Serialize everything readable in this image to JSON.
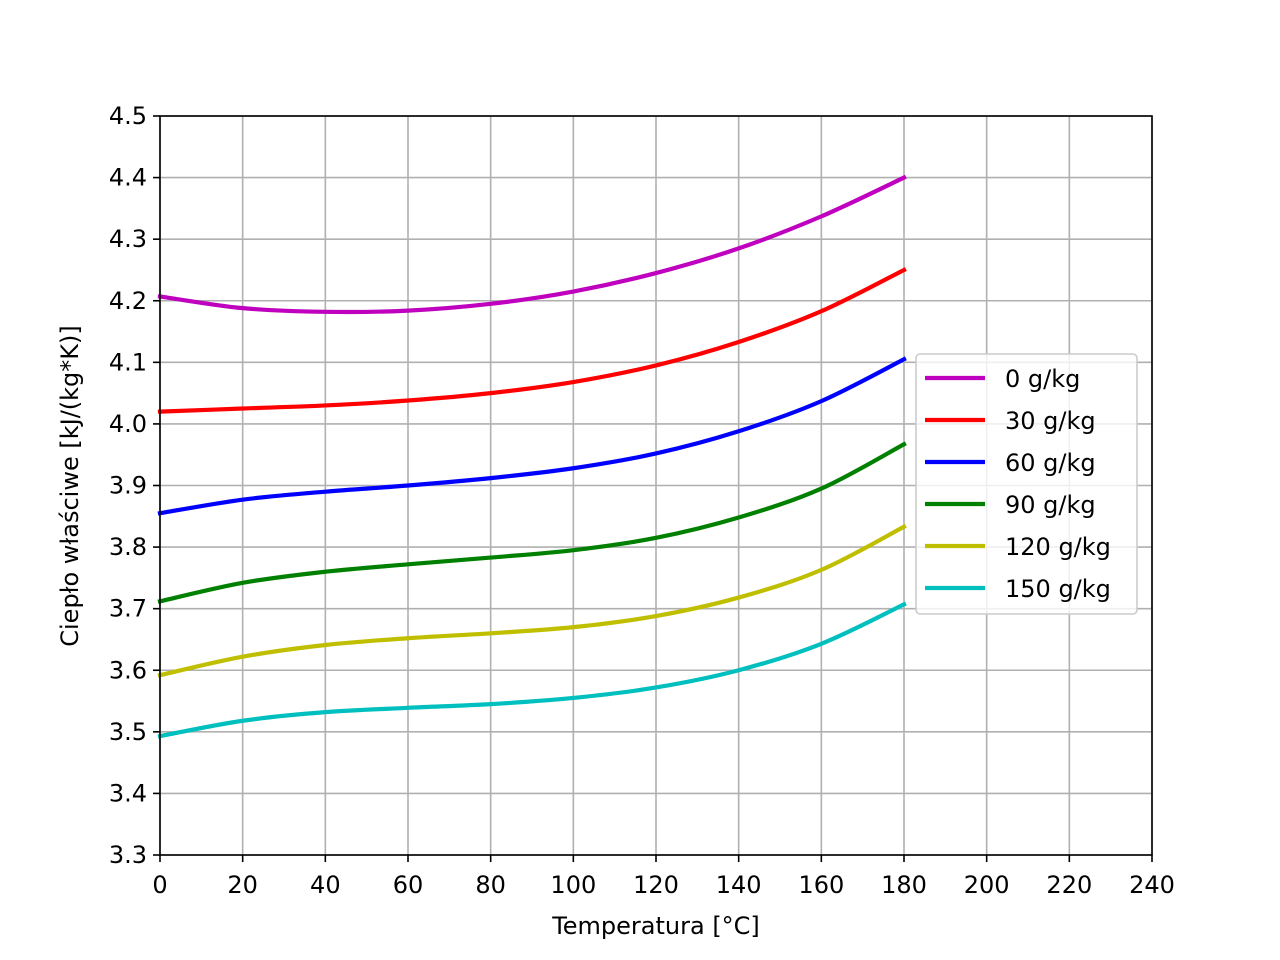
{
  "chart_data": {
    "type": "line",
    "title": "",
    "xlabel": "Temperatura [°C]",
    "ylabel": "Ciepło właściwe [kJ/(kg*K)]",
    "xlim": [
      0,
      240
    ],
    "ylim": [
      3.3,
      4.5
    ],
    "xticks": [
      "0",
      "20",
      "40",
      "60",
      "80",
      "100",
      "120",
      "140",
      "160",
      "180",
      "200",
      "220",
      "240"
    ],
    "yticks": [
      "3.3",
      "3.4",
      "3.5",
      "3.6",
      "3.7",
      "3.8",
      "3.9",
      "4.0",
      "4.1",
      "4.2",
      "4.3",
      "4.4",
      "4.5"
    ],
    "grid": true,
    "legend_position": "center-right",
    "x": [
      0,
      20,
      40,
      60,
      80,
      100,
      120,
      140,
      160,
      180
    ],
    "series": [
      {
        "name": "0 g/kg",
        "color": "#bf00bf",
        "values": [
          4.207,
          4.188,
          4.182,
          4.184,
          4.195,
          4.215,
          4.245,
          4.285,
          4.337,
          4.4
        ]
      },
      {
        "name": "30 g/kg",
        "color": "#ff0000",
        "values": [
          4.02,
          4.025,
          4.03,
          4.038,
          4.05,
          4.068,
          4.095,
          4.133,
          4.183,
          4.25
        ]
      },
      {
        "name": "60 g/kg",
        "color": "#0000ff",
        "values": [
          3.855,
          3.877,
          3.89,
          3.9,
          3.912,
          3.928,
          3.952,
          3.988,
          4.037,
          4.105
        ]
      },
      {
        "name": "90 g/kg",
        "color": "#008000",
        "values": [
          3.712,
          3.742,
          3.76,
          3.772,
          3.783,
          3.795,
          3.815,
          3.848,
          3.895,
          3.967
        ]
      },
      {
        "name": "120 g/kg",
        "color": "#bfbf00",
        "values": [
          3.592,
          3.622,
          3.641,
          3.652,
          3.66,
          3.67,
          3.688,
          3.718,
          3.763,
          3.833
        ]
      },
      {
        "name": "150 g/kg",
        "color": "#00bfbf",
        "values": [
          3.493,
          3.518,
          3.532,
          3.539,
          3.545,
          3.555,
          3.572,
          3.6,
          3.643,
          3.707
        ]
      }
    ]
  }
}
